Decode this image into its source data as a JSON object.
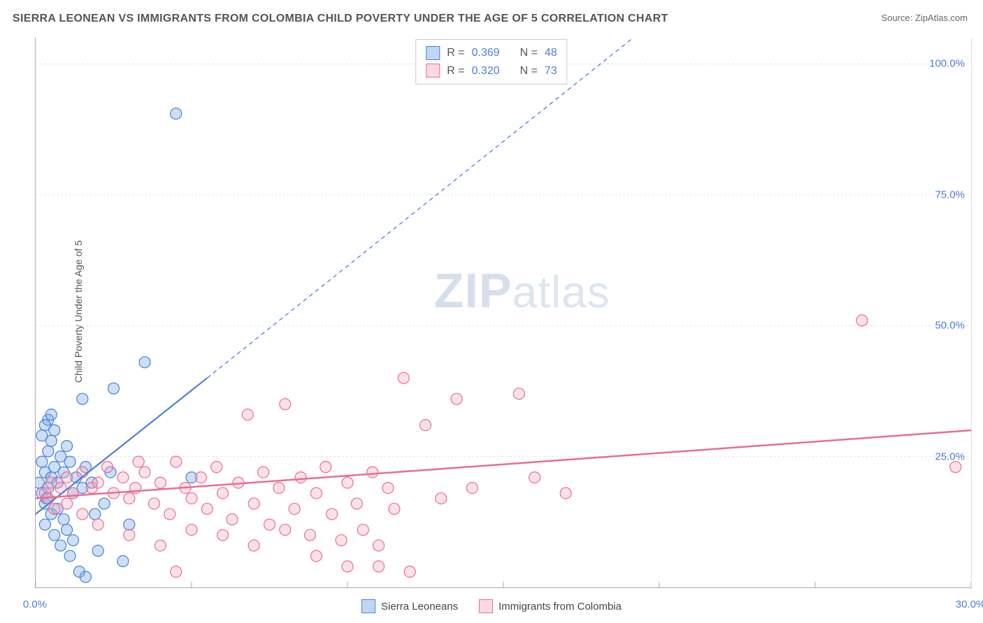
{
  "title": "SIERRA LEONEAN VS IMMIGRANTS FROM COLOMBIA CHILD POVERTY UNDER THE AGE OF 5 CORRELATION CHART",
  "source_label": "Source: ",
  "source_value": "ZipAtlas.com",
  "ylabel": "Child Poverty Under the Age of 5",
  "watermark_zip": "ZIP",
  "watermark_atlas": "atlas",
  "chart": {
    "type": "scatter",
    "background_color": "#ffffff",
    "grid_color": "#e2e2e2",
    "grid_dash": "3 3",
    "axis_color": "#aaaaaa",
    "tick_label_color": "#4a7fd6",
    "tick_label_fontsize": 15,
    "xlim": [
      0,
      30
    ],
    "ylim": [
      0,
      105
    ],
    "x_ticks": [
      0,
      5,
      10,
      15,
      20,
      25,
      30
    ],
    "x_tick_labels": [
      "0.0%",
      "",
      "",
      "",
      "",
      "",
      "30.0%"
    ],
    "y_ticks": [
      25,
      50,
      75,
      100
    ],
    "y_tick_labels": [
      "25.0%",
      "50.0%",
      "75.0%",
      "100.0%"
    ],
    "marker_radius": 8,
    "marker_stroke_width": 1.2,
    "marker_fill_opacity": 0.35,
    "series": [
      {
        "name": "Sierra Leoneans",
        "color": "#6ea3e0",
        "stroke": "#4a7fd6",
        "r_value": "0.369",
        "n_value": "48",
        "trend": {
          "x1": 0,
          "y1": 14,
          "x2": 5.5,
          "y2": 40,
          "solid_until_x": 5.5,
          "dash_to_x": 24,
          "dash_to_y": 128,
          "stroke_width": 2.2,
          "dash": "6 5"
        },
        "points": [
          [
            0.1,
            20
          ],
          [
            0.2,
            18
          ],
          [
            0.3,
            22
          ],
          [
            0.2,
            24
          ],
          [
            0.4,
            19
          ],
          [
            0.3,
            16
          ],
          [
            0.5,
            21
          ],
          [
            0.4,
            26
          ],
          [
            0.6,
            23
          ],
          [
            0.5,
            28
          ],
          [
            0.7,
            20
          ],
          [
            0.8,
            25
          ],
          [
            0.6,
            30
          ],
          [
            0.9,
            22
          ],
          [
            1.0,
            27
          ],
          [
            0.4,
            32
          ],
          [
            0.5,
            14
          ],
          [
            1.2,
            18
          ],
          [
            1.3,
            21
          ],
          [
            1.1,
            24
          ],
          [
            1.5,
            19
          ],
          [
            1.6,
            23
          ],
          [
            0.3,
            12
          ],
          [
            0.6,
            10
          ],
          [
            0.8,
            8
          ],
          [
            1.0,
            11
          ],
          [
            1.2,
            9
          ],
          [
            1.4,
            3
          ],
          [
            1.6,
            2
          ],
          [
            1.8,
            20
          ],
          [
            2.0,
            7
          ],
          [
            2.2,
            16
          ],
          [
            2.4,
            22
          ],
          [
            0.2,
            29
          ],
          [
            0.3,
            31
          ],
          [
            0.5,
            33
          ],
          [
            1.5,
            36
          ],
          [
            2.5,
            38
          ],
          [
            3.5,
            43
          ],
          [
            4.5,
            90.5
          ],
          [
            5.0,
            21
          ],
          [
            3.0,
            12
          ],
          [
            0.7,
            15
          ],
          [
            0.9,
            13
          ],
          [
            1.1,
            6
          ],
          [
            2.8,
            5
          ],
          [
            1.9,
            14
          ],
          [
            0.35,
            17
          ]
        ]
      },
      {
        "name": "Immigrants from Colombia",
        "color": "#f5a8bb",
        "stroke": "#e86e91",
        "r_value": "0.320",
        "n_value": "73",
        "trend": {
          "x1": 0,
          "y1": 17,
          "x2": 30,
          "y2": 30,
          "stroke_width": 2.5
        },
        "points": [
          [
            0.3,
            18
          ],
          [
            0.5,
            20
          ],
          [
            0.8,
            19
          ],
          [
            1.0,
            21
          ],
          [
            1.2,
            18
          ],
          [
            1.5,
            22
          ],
          [
            1.8,
            19
          ],
          [
            2.0,
            20
          ],
          [
            2.3,
            23
          ],
          [
            2.5,
            18
          ],
          [
            2.8,
            21
          ],
          [
            3.0,
            17
          ],
          [
            3.2,
            19
          ],
          [
            3.5,
            22
          ],
          [
            3.8,
            16
          ],
          [
            4.0,
            20
          ],
          [
            4.3,
            14
          ],
          [
            4.5,
            24
          ],
          [
            4.8,
            19
          ],
          [
            5.0,
            17
          ],
          [
            5.3,
            21
          ],
          [
            5.5,
            15
          ],
          [
            5.8,
            23
          ],
          [
            6.0,
            18
          ],
          [
            6.3,
            13
          ],
          [
            6.5,
            20
          ],
          [
            6.8,
            33
          ],
          [
            7.0,
            16
          ],
          [
            7.3,
            22
          ],
          [
            7.5,
            12
          ],
          [
            7.8,
            19
          ],
          [
            8.0,
            35
          ],
          [
            8.3,
            15
          ],
          [
            8.5,
            21
          ],
          [
            8.8,
            10
          ],
          [
            9.0,
            18
          ],
          [
            9.3,
            23
          ],
          [
            9.5,
            14
          ],
          [
            9.8,
            9
          ],
          [
            10.0,
            20
          ],
          [
            10.3,
            16
          ],
          [
            10.5,
            11
          ],
          [
            10.8,
            22
          ],
          [
            11.0,
            8
          ],
          [
            11.3,
            19
          ],
          [
            11.5,
            15
          ],
          [
            12.0,
            3
          ],
          [
            12.5,
            31
          ],
          [
            13.0,
            17
          ],
          [
            11.8,
            40
          ],
          [
            13.5,
            36
          ],
          [
            14.0,
            19
          ],
          [
            15.5,
            37
          ],
          [
            16.0,
            21
          ],
          [
            17.0,
            18
          ],
          [
            5.0,
            11
          ],
          [
            6.0,
            10
          ],
          [
            7.0,
            8
          ],
          [
            8.0,
            11
          ],
          [
            9.0,
            6
          ],
          [
            4.0,
            8
          ],
          [
            3.0,
            10
          ],
          [
            2.0,
            12
          ],
          [
            1.5,
            14
          ],
          [
            1.0,
            16
          ],
          [
            0.6,
            15
          ],
          [
            0.4,
            17
          ],
          [
            10.0,
            4
          ],
          [
            11.0,
            4
          ],
          [
            26.5,
            51
          ],
          [
            29.5,
            23
          ],
          [
            4.5,
            3
          ],
          [
            3.3,
            24
          ]
        ]
      }
    ]
  },
  "legend_top": {
    "r_label": "R =",
    "n_label": "N ="
  },
  "legend_bottom": {
    "items": [
      "Sierra Leoneans",
      "Immigrants from Colombia"
    ]
  }
}
